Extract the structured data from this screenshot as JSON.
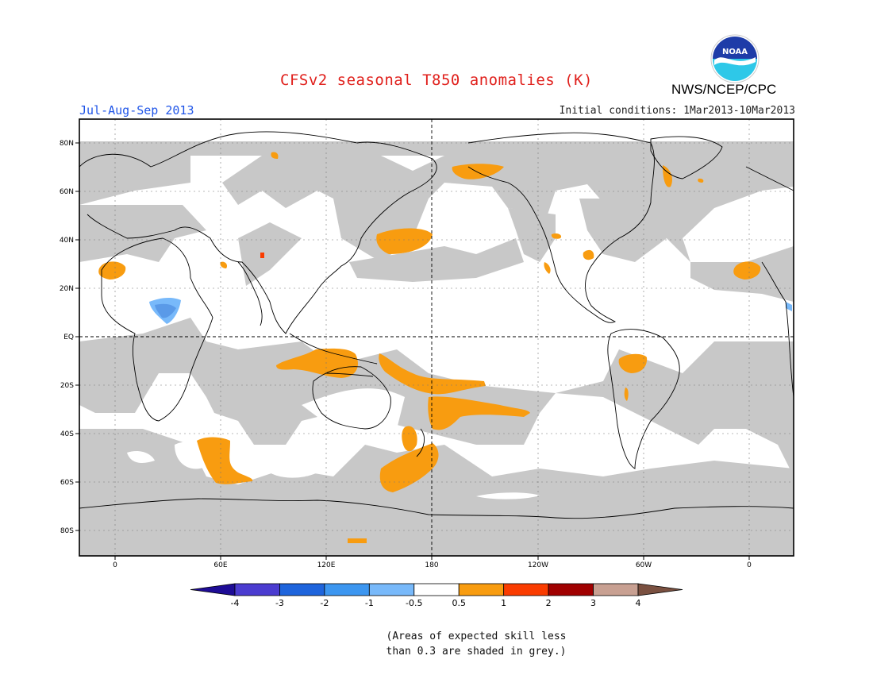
{
  "header": {
    "title": "CFSv2 seasonal T850 anomalies (K)",
    "organization": "NWS/NCEP/CPC",
    "logo_text": "NOAA",
    "season": "Jul-Aug-Sep 2013",
    "initial_conditions": "Initial conditions: 1Mar2013-10Mar2013"
  },
  "map": {
    "latitude_labels": [
      "80N",
      "60N",
      "40N",
      "20N",
      "EQ",
      "20S",
      "40S",
      "60S",
      "80S"
    ],
    "longitude_labels": [
      "0",
      "60E",
      "120E",
      "180",
      "120W",
      "60W",
      "0"
    ],
    "skill_mask_color": "#c8c8c8",
    "positive_anomaly_color": "#f89c10",
    "negative_anomaly_color": "#6aa5ee"
  },
  "colorbar": {
    "labels": [
      "-4",
      "-3",
      "-2",
      "-1",
      "-0.5",
      "0.5",
      "1",
      "2",
      "3",
      "4"
    ],
    "colors": [
      "#1e0c96",
      "#4b3cd0",
      "#1e64dc",
      "#3c96f0",
      "#78b9fa",
      "#ffffff",
      "#f89c10",
      "#fa3c00",
      "#a00000",
      "#c8a092",
      "#7a5040"
    ]
  },
  "footnote": {
    "line1": "(Areas of expected skill less",
    "line2": "than 0.3 are shaded in grey.)"
  }
}
